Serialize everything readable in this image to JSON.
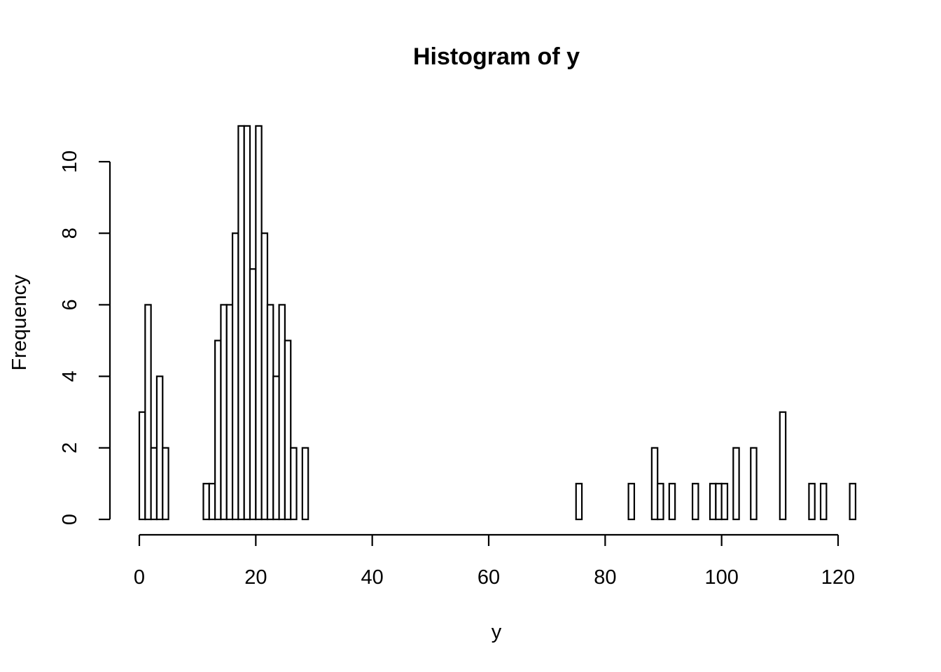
{
  "chart_data": {
    "type": "bar",
    "subtype": "histogram",
    "title": "Histogram of y",
    "xlabel": "y",
    "ylabel": "Frequency",
    "bin_width": 1,
    "xlim": [
      0,
      123
    ],
    "ylim": [
      0,
      11
    ],
    "x_ticks": [
      0,
      20,
      40,
      60,
      80,
      100,
      120
    ],
    "y_ticks": [
      0,
      2,
      4,
      6,
      8,
      10
    ],
    "grid": false,
    "legend": "none",
    "bins": [
      {
        "start": 0,
        "end": 1,
        "count": 3
      },
      {
        "start": 1,
        "end": 2,
        "count": 6
      },
      {
        "start": 2,
        "end": 3,
        "count": 2
      },
      {
        "start": 3,
        "end": 4,
        "count": 4
      },
      {
        "start": 4,
        "end": 5,
        "count": 2
      },
      {
        "start": 11,
        "end": 12,
        "count": 1
      },
      {
        "start": 12,
        "end": 13,
        "count": 1
      },
      {
        "start": 13,
        "end": 14,
        "count": 5
      },
      {
        "start": 14,
        "end": 15,
        "count": 6
      },
      {
        "start": 15,
        "end": 16,
        "count": 6
      },
      {
        "start": 16,
        "end": 17,
        "count": 8
      },
      {
        "start": 17,
        "end": 18,
        "count": 11
      },
      {
        "start": 18,
        "end": 19,
        "count": 11
      },
      {
        "start": 19,
        "end": 20,
        "count": 7
      },
      {
        "start": 20,
        "end": 21,
        "count": 11
      },
      {
        "start": 21,
        "end": 22,
        "count": 8
      },
      {
        "start": 22,
        "end": 23,
        "count": 6
      },
      {
        "start": 23,
        "end": 24,
        "count": 4
      },
      {
        "start": 24,
        "end": 25,
        "count": 6
      },
      {
        "start": 25,
        "end": 26,
        "count": 5
      },
      {
        "start": 26,
        "end": 27,
        "count": 2
      },
      {
        "start": 28,
        "end": 29,
        "count": 2
      },
      {
        "start": 75,
        "end": 76,
        "count": 1
      },
      {
        "start": 84,
        "end": 85,
        "count": 1
      },
      {
        "start": 88,
        "end": 89,
        "count": 2
      },
      {
        "start": 89,
        "end": 90,
        "count": 1
      },
      {
        "start": 91,
        "end": 92,
        "count": 1
      },
      {
        "start": 95,
        "end": 96,
        "count": 1
      },
      {
        "start": 98,
        "end": 99,
        "count": 1
      },
      {
        "start": 99,
        "end": 100,
        "count": 1
      },
      {
        "start": 100,
        "end": 101,
        "count": 1
      },
      {
        "start": 102,
        "end": 103,
        "count": 2
      },
      {
        "start": 105,
        "end": 106,
        "count": 2
      },
      {
        "start": 110,
        "end": 111,
        "count": 3
      },
      {
        "start": 115,
        "end": 116,
        "count": 1
      },
      {
        "start": 117,
        "end": 118,
        "count": 1
      },
      {
        "start": 122,
        "end": 123,
        "count": 1
      }
    ]
  }
}
